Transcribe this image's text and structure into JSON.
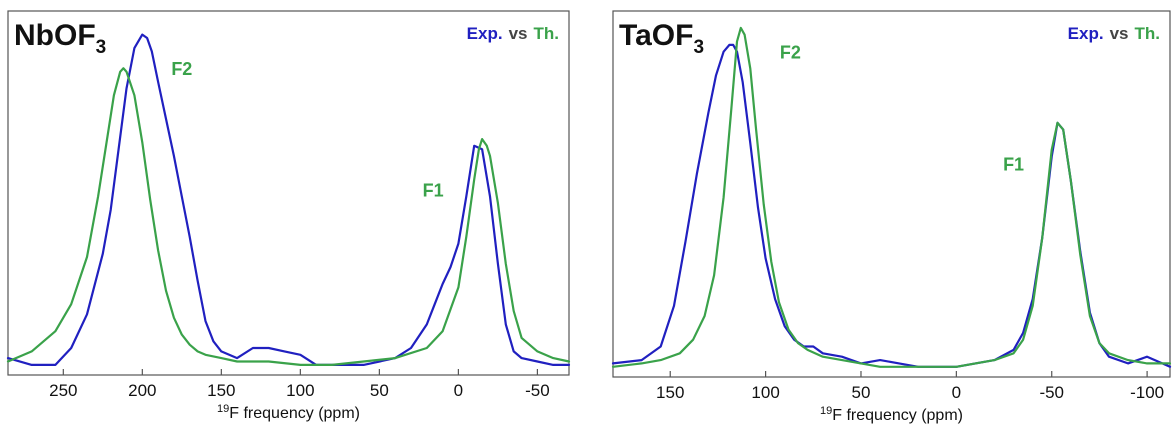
{
  "colors": {
    "experimental": "#2020c0",
    "theory": "#3aa24a",
    "axis": "#555555",
    "text": "#111111"
  },
  "chart_data": [
    {
      "type": "line",
      "title": "NbOF",
      "title_subscript": "3",
      "legend": {
        "exp_label": "Exp.",
        "vs_label": "vs",
        "th_label": "Th."
      },
      "xlabel_sup": "19",
      "xlabel": "F frequency (ppm)",
      "ylabel": "",
      "xlim": [
        285,
        -70
      ],
      "x_reversed": true,
      "xticks": [
        250,
        200,
        150,
        100,
        50,
        0,
        -50
      ],
      "xtick_labels": [
        "250",
        "200",
        "150",
        "100",
        "50",
        "0",
        "-50"
      ],
      "ylim": [
        -0.03,
        1.05
      ],
      "annotations": [
        {
          "text": "F2",
          "x": 175,
          "y": 0.86
        },
        {
          "text": "F1",
          "x": 16,
          "y": 0.5
        }
      ],
      "series": [
        {
          "name": "Exp.",
          "color": "#2020c0",
          "x": [
            285,
            270,
            255,
            245,
            235,
            225,
            220,
            215,
            210,
            205,
            200,
            197,
            194,
            190,
            185,
            180,
            175,
            170,
            165,
            160,
            155,
            150,
            140,
            130,
            120,
            110,
            100,
            90,
            80,
            60,
            40,
            30,
            20,
            15,
            10,
            5,
            0,
            -5,
            -10,
            -15,
            -20,
            -25,
            -30,
            -35,
            -40,
            -50,
            -60,
            -70
          ],
          "y": [
            0.02,
            0.0,
            0.0,
            0.05,
            0.15,
            0.33,
            0.46,
            0.64,
            0.82,
            0.94,
            0.98,
            0.97,
            0.93,
            0.84,
            0.73,
            0.62,
            0.5,
            0.38,
            0.25,
            0.13,
            0.07,
            0.04,
            0.02,
            0.05,
            0.05,
            0.04,
            0.03,
            0.0,
            0.0,
            0.0,
            0.02,
            0.05,
            0.12,
            0.18,
            0.24,
            0.29,
            0.36,
            0.5,
            0.65,
            0.64,
            0.5,
            0.3,
            0.12,
            0.04,
            0.02,
            0.01,
            0.0,
            0.0
          ]
        },
        {
          "name": "Th.",
          "color": "#3aa24a",
          "x": [
            285,
            270,
            255,
            245,
            235,
            228,
            222,
            218,
            214,
            212,
            210,
            205,
            200,
            195,
            190,
            185,
            180,
            175,
            170,
            165,
            160,
            150,
            140,
            120,
            100,
            80,
            60,
            40,
            20,
            10,
            0,
            -5,
            -10,
            -13,
            -15,
            -18,
            -20,
            -25,
            -30,
            -35,
            -40,
            -50,
            -60,
            -70
          ],
          "y": [
            0.01,
            0.04,
            0.1,
            0.18,
            0.32,
            0.5,
            0.68,
            0.8,
            0.87,
            0.88,
            0.87,
            0.8,
            0.66,
            0.49,
            0.34,
            0.22,
            0.14,
            0.09,
            0.06,
            0.04,
            0.03,
            0.02,
            0.01,
            0.01,
            0.0,
            0.0,
            0.01,
            0.02,
            0.05,
            0.1,
            0.23,
            0.38,
            0.55,
            0.64,
            0.67,
            0.65,
            0.62,
            0.48,
            0.3,
            0.16,
            0.08,
            0.04,
            0.02,
            0.01
          ]
        }
      ]
    },
    {
      "type": "line",
      "title": "TaOF",
      "title_subscript": "3",
      "legend": {
        "exp_label": "Exp.",
        "vs_label": "vs",
        "th_label": "Th."
      },
      "xlabel_sup": "19",
      "xlabel": "F frequency (ppm)",
      "ylabel": "",
      "xlim": [
        180,
        -112
      ],
      "x_reversed": true,
      "xticks": [
        150,
        100,
        50,
        0,
        -50,
        -100
      ],
      "xtick_labels": [
        "150",
        "100",
        "50",
        "0",
        "-50",
        "-100"
      ],
      "ylim": [
        -0.03,
        1.05
      ],
      "annotations": [
        {
          "text": "F2",
          "x": 87,
          "y": 0.91
        },
        {
          "text": "F1",
          "x": -30,
          "y": 0.58
        }
      ],
      "series": [
        {
          "name": "Exp.",
          "color": "#2020c0",
          "x": [
            180,
            165,
            155,
            148,
            142,
            136,
            130,
            126,
            122,
            119,
            117,
            115,
            112,
            108,
            104,
            100,
            95,
            90,
            85,
            80,
            75,
            70,
            60,
            50,
            40,
            30,
            20,
            10,
            0,
            -10,
            -20,
            -30,
            -35,
            -40,
            -45,
            -50,
            -53,
            -56,
            -60,
            -65,
            -70,
            -75,
            -80,
            -90,
            -100,
            -112
          ],
          "y": [
            0.01,
            0.02,
            0.06,
            0.18,
            0.37,
            0.57,
            0.75,
            0.86,
            0.93,
            0.95,
            0.95,
            0.93,
            0.84,
            0.66,
            0.47,
            0.32,
            0.2,
            0.12,
            0.08,
            0.06,
            0.06,
            0.04,
            0.03,
            0.01,
            0.02,
            0.01,
            0.0,
            0.0,
            0.0,
            0.01,
            0.02,
            0.05,
            0.1,
            0.2,
            0.38,
            0.62,
            0.72,
            0.7,
            0.55,
            0.34,
            0.16,
            0.07,
            0.03,
            0.01,
            0.03,
            0.0
          ]
        },
        {
          "name": "Th.",
          "color": "#3aa24a",
          "x": [
            180,
            165,
            155,
            145,
            138,
            132,
            127,
            122,
            118,
            115,
            113,
            111,
            108,
            105,
            101,
            97,
            93,
            88,
            83,
            78,
            70,
            60,
            50,
            40,
            30,
            20,
            10,
            0,
            -10,
            -20,
            -30,
            -35,
            -40,
            -45,
            -50,
            -53,
            -56,
            -60,
            -65,
            -70,
            -75,
            -80,
            -90,
            -100,
            -112
          ],
          "y": [
            0.0,
            0.01,
            0.02,
            0.04,
            0.08,
            0.15,
            0.27,
            0.5,
            0.76,
            0.96,
            1.0,
            0.98,
            0.88,
            0.7,
            0.48,
            0.31,
            0.19,
            0.11,
            0.07,
            0.05,
            0.03,
            0.02,
            0.01,
            0.0,
            0.0,
            0.0,
            0.0,
            0.0,
            0.01,
            0.02,
            0.04,
            0.08,
            0.18,
            0.38,
            0.64,
            0.72,
            0.7,
            0.55,
            0.33,
            0.15,
            0.07,
            0.04,
            0.02,
            0.01,
            0.01
          ]
        }
      ]
    }
  ]
}
